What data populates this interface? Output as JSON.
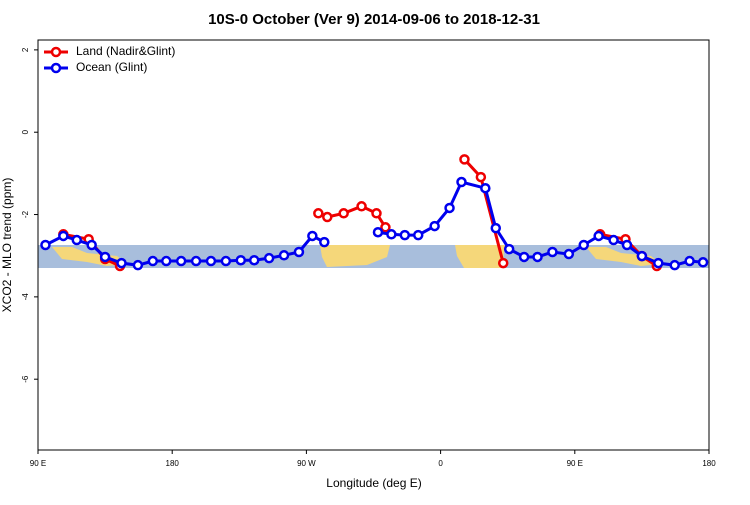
{
  "chart_data": {
    "type": "line",
    "title": "10S-0 October (Ver 9)   2014-09-06 to 2018-12-31",
    "x_label": "Longitude (deg E)",
    "y_label": "XCO2 - MLO trend (ppm)",
    "xlim": [
      90,
      540
    ],
    "xticks": [
      {
        "value": 90,
        "label": "90 E"
      },
      180,
      {
        "value": 270,
        "label": "90 W"
      },
      {
        "value": 360,
        "label": "0"
      },
      {
        "value": 450,
        "label": "90 E"
      },
      {
        "value": 540,
        "label": "180"
      }
    ],
    "ylim": [
      -7.72,
      2.24
    ],
    "yticks": [
      2,
      0,
      -2,
      -4,
      -6
    ],
    "legend": "top-left",
    "series": [
      {
        "name": "Land (Nadir&Glint)",
        "color": "#ee0000",
        "x": [
          107,
          124,
          135,
          145,
          null,
          278,
          284,
          295,
          307,
          317,
          323,
          null,
          376,
          387,
          402,
          null,
          467,
          484,
          495,
          505
        ],
        "values": [
          -2.48,
          -2.6,
          -3.08,
          -3.25,
          null,
          -1.97,
          -2.06,
          -1.97,
          -1.8,
          -1.97,
          -2.31,
          null,
          -0.66,
          -1.09,
          -3.18,
          null,
          -2.48,
          -2.6,
          -3.01,
          -3.25
        ]
      },
      {
        "name": "Ocean (Glint)",
        "color": "#0000ee",
        "x": [
          95,
          107,
          116,
          126,
          135,
          146,
          157,
          167,
          176,
          186,
          196,
          206,
          216,
          226,
          235,
          245,
          255,
          265,
          274,
          282,
          null,
          318,
          327,
          336,
          345,
          356,
          366,
          374,
          390,
          397,
          406,
          416,
          425,
          435,
          446,
          456,
          466,
          476,
          485,
          495,
          506,
          517,
          527,
          536
        ],
        "values": [
          -2.74,
          -2.52,
          -2.62,
          -2.74,
          -3.03,
          -3.18,
          -3.23,
          -3.13,
          -3.13,
          -3.13,
          -3.13,
          -3.13,
          -3.13,
          -3.11,
          -3.11,
          -3.06,
          -2.99,
          -2.91,
          -2.52,
          -2.67,
          null,
          -2.43,
          -2.48,
          -2.5,
          -2.5,
          -2.28,
          -1.84,
          -1.21,
          -1.36,
          -2.33,
          -2.84,
          -3.03,
          -3.03,
          -2.91,
          -2.96,
          -2.74,
          -2.52,
          -2.62,
          -2.74,
          -3.01,
          -3.18,
          -3.23,
          -3.13,
          -3.16
        ]
      }
    ]
  }
}
